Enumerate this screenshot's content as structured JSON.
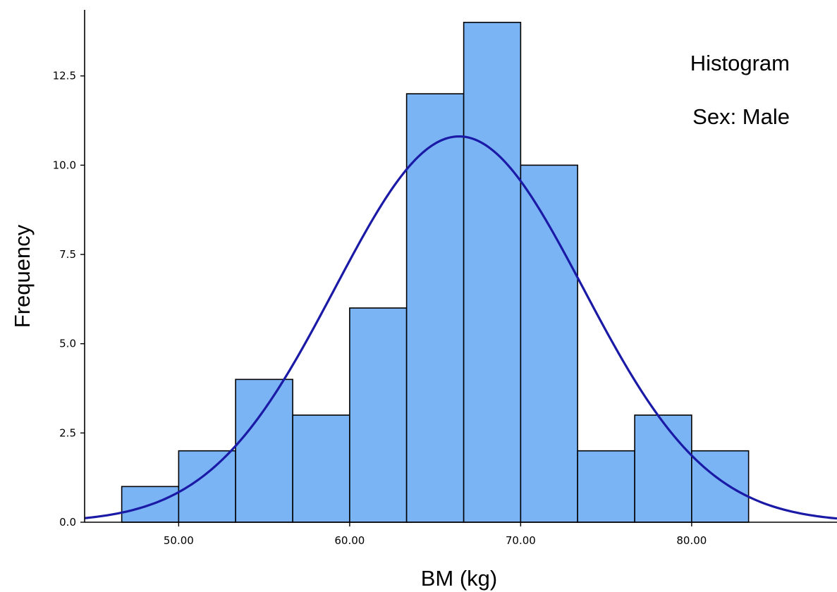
{
  "chart_data": {
    "type": "bar",
    "title": "Histogram",
    "subtitle": "Sex: Male",
    "xlabel": "BM (kg)",
    "ylabel": "Frequency",
    "bin_edges": [
      46.67,
      50.0,
      53.33,
      56.67,
      60.0,
      63.33,
      66.67,
      70.0,
      73.33,
      76.67,
      80.0,
      83.33
    ],
    "values": [
      1,
      2,
      4,
      3,
      6,
      12,
      14,
      10,
      2,
      3,
      2
    ],
    "xlim": [
      44.5,
      88.5
    ],
    "ylim": [
      0,
      14.35
    ],
    "x_ticks": [
      50,
      60,
      70,
      80
    ],
    "x_tick_labels": [
      "50.00",
      "60.00",
      "70.00",
      "80.00"
    ],
    "y_ticks": [
      0,
      2.5,
      5,
      7.5,
      10,
      12.5
    ],
    "y_tick_labels": [
      "0.0",
      "2.5",
      "5.0",
      "7.5",
      "10.0",
      "12.5"
    ],
    "normal_curve": {
      "mean": 66.4,
      "sd": 7.26,
      "n": 59,
      "bin_width": 3.333
    },
    "bar_color": "#7ab4f5",
    "bar_edge_color": "#000000",
    "curve_color": "#1a1aa6",
    "grid": false,
    "legend": "none"
  }
}
